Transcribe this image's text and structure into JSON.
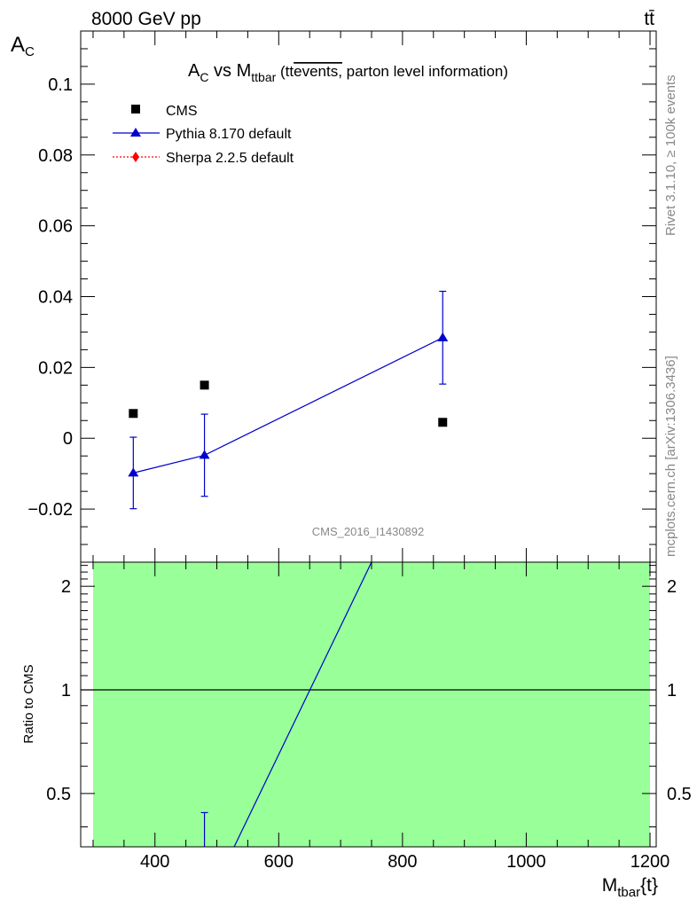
{
  "header": {
    "energy": "8000 GeV pp",
    "process": "tt̄"
  },
  "side": {
    "rivet": "Rivet 3.1.10, ≥ 100k events",
    "mcplots": "mcplots.cern.ch [arXiv:1306.3436]"
  },
  "chart_data": [
    {
      "type": "scatter",
      "title_parts": {
        "a": "A",
        "a_sub": "C",
        "vs": " vs M",
        "m_sub": "ttbar",
        "paren": " (tt",
        "overline": "events,",
        "rest": " parton level information)"
      },
      "ylabel": {
        "main": "A",
        "sub": "C"
      },
      "watermark": "CMS_2016_I1430892",
      "xlim": [
        280,
        1210
      ],
      "ylim": [
        -0.035,
        0.115
      ],
      "yticks": [
        -0.02,
        0,
        0.02,
        0.04,
        0.06,
        0.08,
        0.1
      ],
      "ytick_labels": [
        "−0.02",
        "0",
        "0.02",
        "0.04",
        "0.06",
        "0.08",
        "0.1"
      ],
      "legend_position": "top-left",
      "legend": [
        "CMS",
        "Pythia 8.170 default",
        "Sherpa 2.2.5 default"
      ],
      "series": [
        {
          "name": "CMS",
          "color": "#000000",
          "marker": "square",
          "x": [
            365,
            480,
            865
          ],
          "y": [
            0.007,
            0.015,
            0.0045
          ]
        },
        {
          "name": "Pythia 8.170 default",
          "color": "#0000cc",
          "marker": "triangle",
          "x": [
            365,
            480,
            865
          ],
          "y": [
            -0.0098,
            -0.0048,
            0.0284
          ],
          "yerr": [
            0.0101,
            0.0116,
            0.0131
          ]
        },
        {
          "name": "Sherpa 2.2.5 default",
          "color": "#ff0000",
          "marker": "diamond",
          "x": [],
          "y": []
        }
      ]
    },
    {
      "type": "line",
      "ylabel": "Ratio to CMS",
      "xlabel": {
        "main": "M",
        "sub": "tbar",
        "rest": "{t}"
      },
      "xlim": [
        280,
        1210
      ],
      "ylim": [
        0.35,
        2.35
      ],
      "xticks": [
        400,
        600,
        800,
        1000,
        1200
      ],
      "xtick_labels": [
        "400",
        "600",
        "800",
        "1000",
        "1200"
      ],
      "yticks": [
        0.5,
        1,
        2
      ],
      "ytick_labels": [
        "0.5",
        "1",
        "2"
      ],
      "band": {
        "x": [
          300,
          1200
        ],
        "y": [
          0.35,
          2.35
        ],
        "color": "#99ff99"
      },
      "reference_line": 1,
      "series": [
        {
          "name": "Pythia 8.170 default",
          "color": "#0000cc",
          "x": [
            528,
            750
          ],
          "y": [
            0.35,
            2.35
          ]
        }
      ],
      "errorbar": {
        "x": 480,
        "y_low": 0.35,
        "y_high": 0.44,
        "color": "#0000cc"
      }
    }
  ]
}
